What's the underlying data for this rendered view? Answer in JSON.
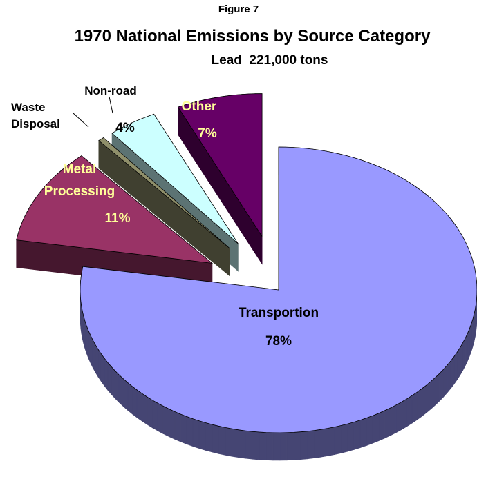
{
  "chart_data": {
    "type": "pie3d",
    "figure": "Figure 7",
    "title": "1970 National Emissions by Source Category",
    "subtitle": "Lead  221,000 tons",
    "categories": [
      "Transportion",
      "Metal Processing",
      "Waste Disposal",
      "Non-road",
      "Other"
    ],
    "values": [
      78,
      11,
      0.5,
      4,
      7
    ],
    "value_labels": [
      "78%",
      "11%",
      null,
      "4%",
      "7%"
    ],
    "colors": [
      "#9999ff",
      "#993366",
      "#8f8f6a",
      "#ccffff",
      "#660066"
    ]
  }
}
